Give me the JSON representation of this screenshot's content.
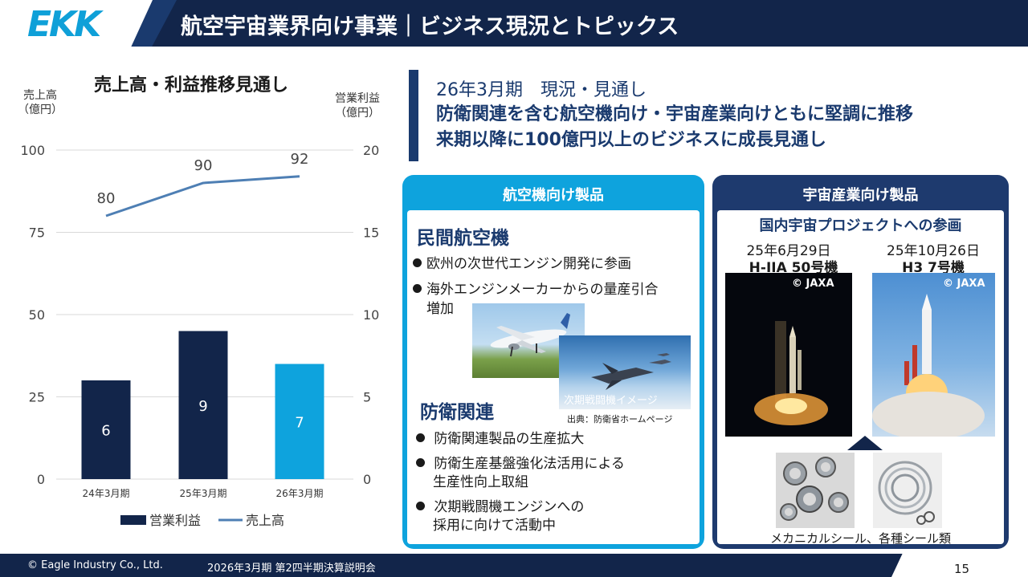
{
  "header": {
    "logo_text": "EKK",
    "title": "航空宇宙業界向け事業｜ビジネス現況とトピックス"
  },
  "footer": {
    "copyright": "© Eagle Industry Co., Ltd.",
    "event": "2026年3月期 第2四半期決算説明会",
    "page_number": "15"
  },
  "chart_data": {
    "type": "bar",
    "title": "売上高・利益推移見通し",
    "categories": [
      "24年3月期",
      "25年3月期",
      "26年3月期"
    ],
    "ylabel_left": "売上高\n（億円）",
    "ylabel_right": "営業利益\n（億円）",
    "ylim_left": [
      0,
      100
    ],
    "ylim_right": [
      0,
      20
    ],
    "yticks_left": [
      "0",
      "25",
      "50",
      "75",
      "100"
    ],
    "yticks_right": [
      "0",
      "5",
      "10",
      "15",
      "20"
    ],
    "grid": true,
    "legend_position": "bottom",
    "series": [
      {
        "name": "営業利益",
        "type": "bar",
        "axis": "right",
        "values": [
          6,
          9,
          7
        ],
        "labels": [
          "6",
          "9",
          "7"
        ],
        "colors": [
          "#12254a",
          "#12254a",
          "#0ea3dd"
        ]
      },
      {
        "name": "売上高",
        "type": "line",
        "axis": "left",
        "values": [
          80,
          90,
          92
        ],
        "labels": [
          "80",
          "90",
          "92"
        ],
        "color": "#4e7fb4"
      }
    ]
  },
  "callout": {
    "line1": "26年3月期　現況・見通し",
    "line2": "防衛関連を含む航空機向け・宇宙産業向けともに堅調に推移",
    "line3": "来期以降に100億円以上のビジネスに成長見通し"
  },
  "aircraft_panel": {
    "title": "航空機向け製品",
    "civil_heading": "民間航空機",
    "civil_bullets": [
      "欧州の次世代エンジン開発に参画",
      "海外エンジンメーカーからの量産引合",
      "増加"
    ],
    "fighter_caption": "次期戦闘機イメージ",
    "source_note": "出典：防衛省ホームページ",
    "defense_heading": "防衛関連",
    "defense_bullets": [
      "防衛関連製品の生産拡大",
      "防衛生産基盤強化法活用による",
      "生産性向上取組",
      "次期戦闘機エンジンへの",
      "採用に向けて活動中"
    ]
  },
  "space_panel": {
    "title": "宇宙産業向け製品",
    "subtitle": "国内宇宙プロジェクトへの参画",
    "launch1_date": "25年6月29日",
    "launch1_name": "H-IIA 50号機",
    "launch2_date": "25年10月26日",
    "launch2_name": "H3 7号機",
    "credit": "© JAXA",
    "seal_caption": "メカニカルシール、各種シール類"
  },
  "colors": {
    "navy": "#12254a",
    "accent_blue": "#0ea3dd",
    "line_blue": "#4e7fb4",
    "heading_navy": "#1a3a6e"
  }
}
